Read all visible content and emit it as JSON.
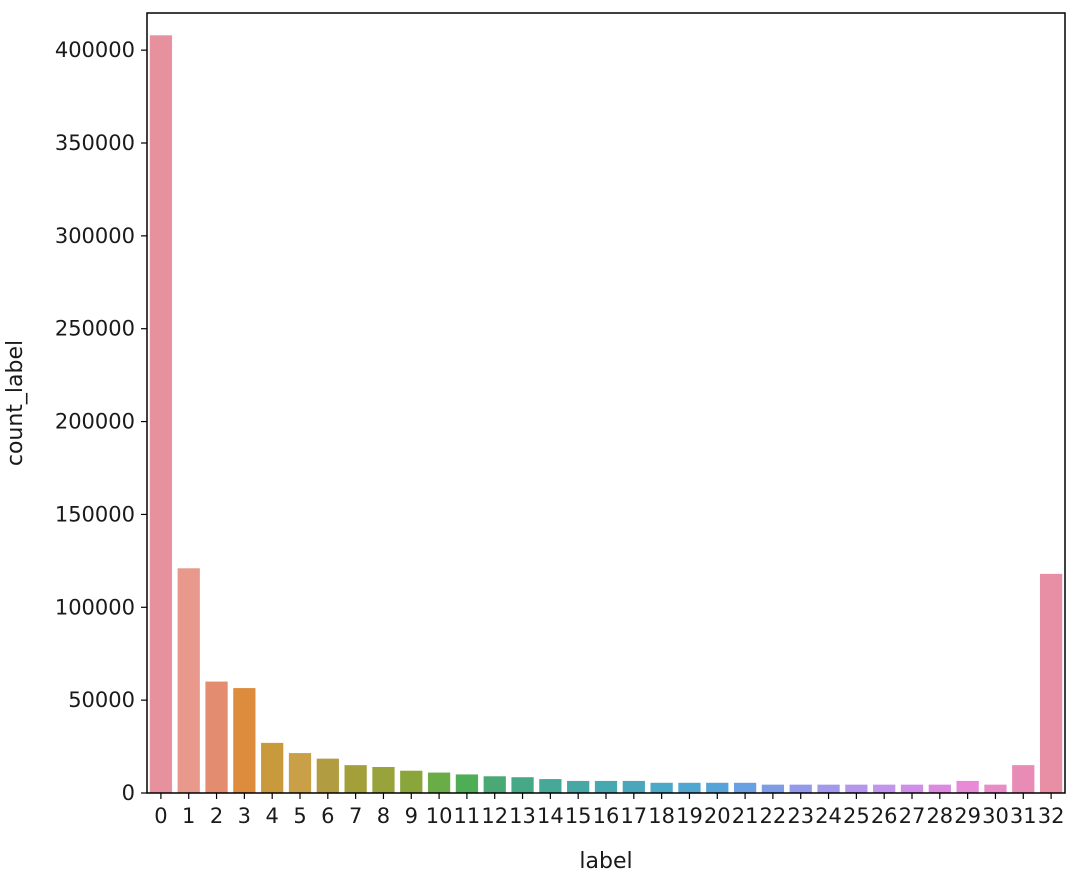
{
  "chart_data": {
    "type": "bar",
    "title": "",
    "xlabel": "label",
    "ylabel": "count_label",
    "ylim": [
      0,
      420000
    ],
    "yticks": [
      0,
      50000,
      100000,
      150000,
      200000,
      250000,
      300000,
      350000,
      400000
    ],
    "categories": [
      "0",
      "1",
      "2",
      "3",
      "4",
      "5",
      "6",
      "7",
      "8",
      "9",
      "10",
      "11",
      "12",
      "13",
      "14",
      "15",
      "16",
      "17",
      "18",
      "19",
      "20",
      "21",
      "22",
      "23",
      "24",
      "25",
      "26",
      "27",
      "28",
      "29",
      "30",
      "31",
      "32"
    ],
    "values": [
      408000,
      121000,
      60000,
      56500,
      27000,
      21500,
      18500,
      15000,
      14000,
      12000,
      11000,
      10000,
      9000,
      8500,
      7500,
      6500,
      6500,
      6500,
      5500,
      5500,
      5500,
      5500,
      4500,
      4500,
      4500,
      4500,
      4500,
      4500,
      4500,
      6500,
      4500,
      15000,
      118000
    ],
    "colors": [
      "#e8919e",
      "#e8998c",
      "#e38c6f",
      "#dc8c3c",
      "#c89a3c",
      "#c9a047",
      "#b29c42",
      "#a3a03a",
      "#99a33c",
      "#8aa53a",
      "#6aac45",
      "#4dae55",
      "#4aa874",
      "#47a888",
      "#46a897",
      "#47a7a5",
      "#48a8b0",
      "#4aa7ba",
      "#4ba8c6",
      "#4fa6d0",
      "#55a3d9",
      "#68a0e1",
      "#7c9ce6",
      "#939ae9",
      "#a399ec",
      "#b497ec",
      "#c295ec",
      "#d08ee9",
      "#dd89e0",
      "#e88ad6",
      "#e98bc6",
      "#e88bb5",
      "#e88fa6"
    ],
    "grid": false,
    "legend": "none"
  }
}
